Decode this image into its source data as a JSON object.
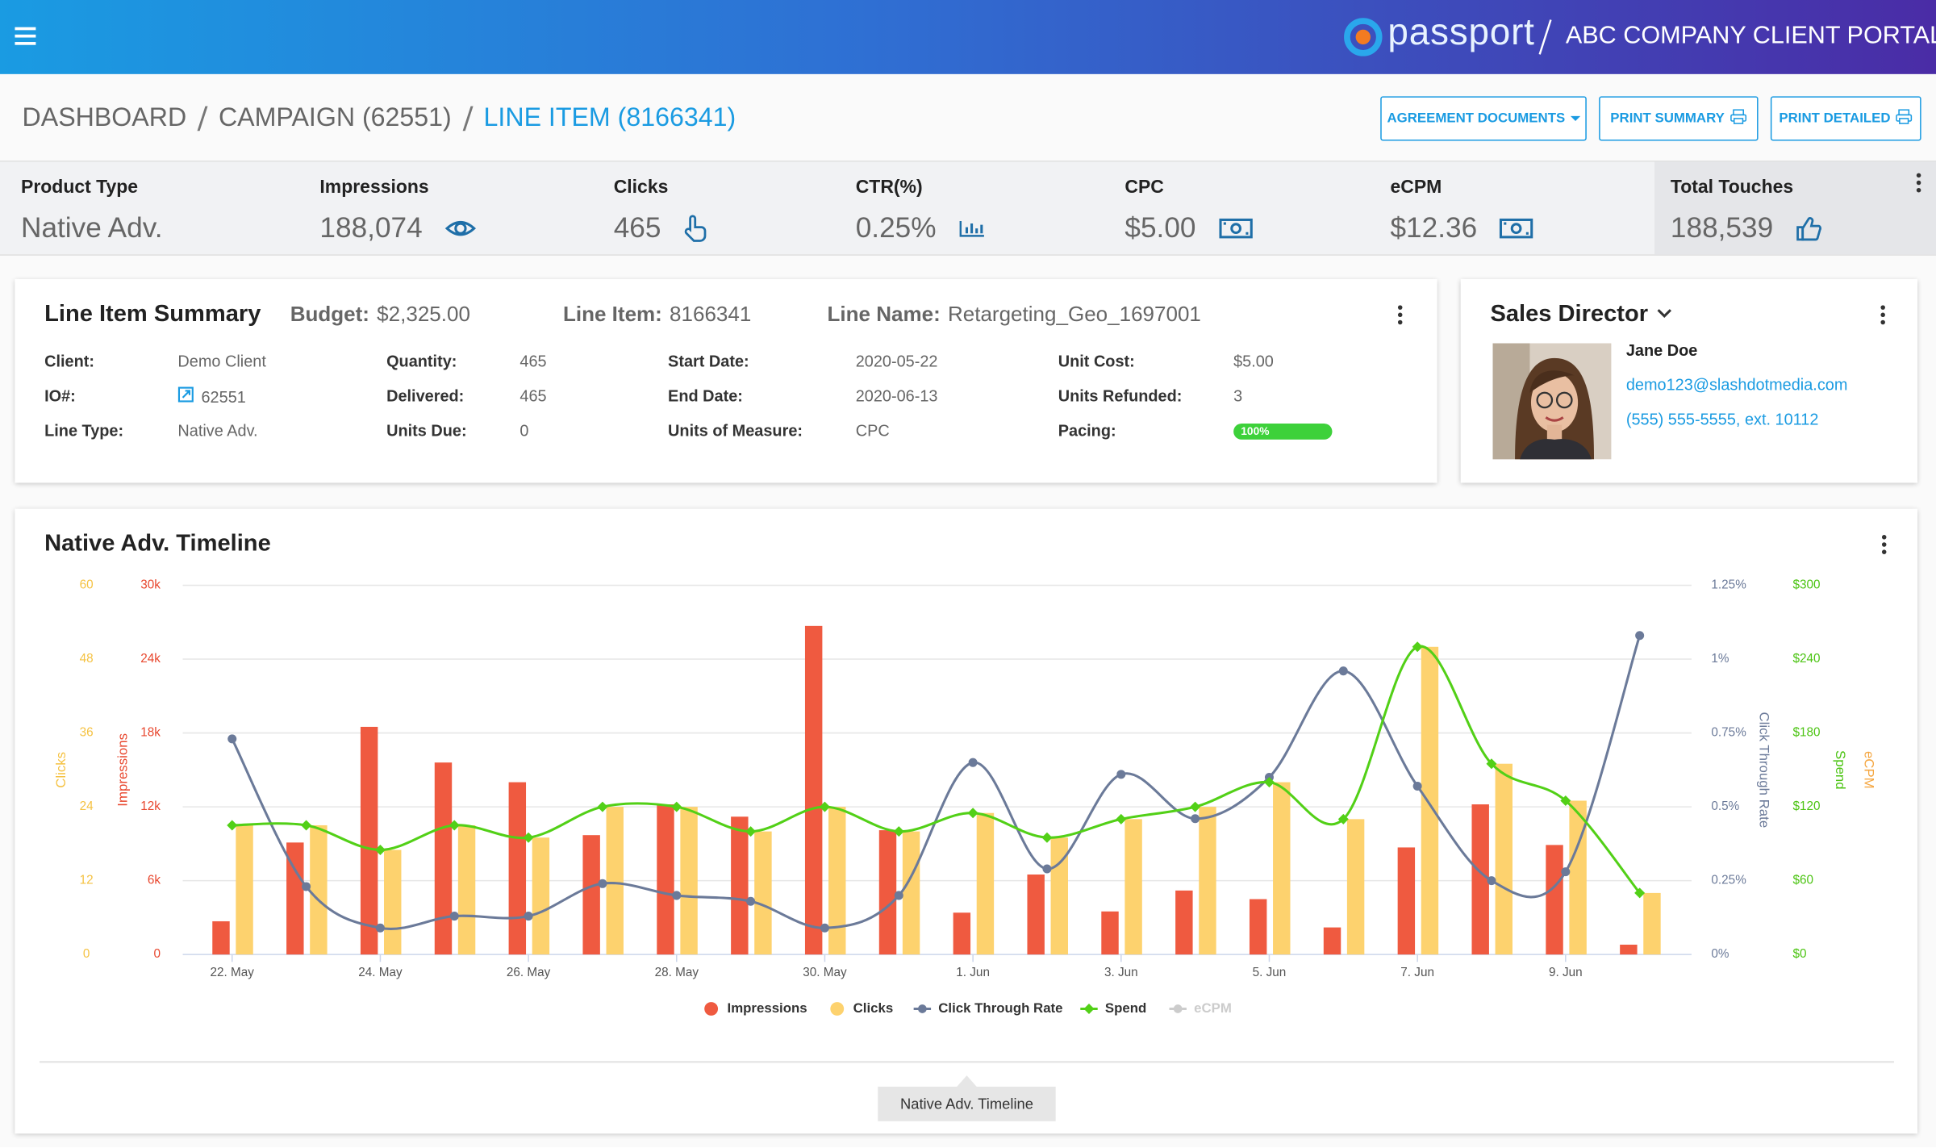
{
  "header": {
    "logo": "passport",
    "portal_title": "ABC COMPANY CLIENT PORTAL"
  },
  "breadcrumbs": [
    "DASHBOARD",
    "CAMPAIGN (62551)",
    "LINE ITEM (8166341)"
  ],
  "buttons": [
    "AGREEMENT DOCUMENTS",
    "PRINT SUMMARY",
    "PRINT DETAILED"
  ],
  "metrics": [
    {
      "label": "Product Type",
      "value": "Native Adv."
    },
    {
      "label": "Impressions",
      "value": "188,074"
    },
    {
      "label": "Clicks",
      "value": "465"
    },
    {
      "label": "CTR(%)",
      "value": "0.25%"
    },
    {
      "label": "CPC",
      "value": "$5.00"
    },
    {
      "label": "eCPM",
      "value": "$12.36"
    },
    {
      "label": "Total Touches",
      "value": "188,539"
    }
  ],
  "summary": {
    "title": "Line Item Summary",
    "header": [
      {
        "label": "Budget:",
        "value": "$2,325.00"
      },
      {
        "label": "Line Item:",
        "value": "8166341"
      },
      {
        "label": "Line Name:",
        "value": "Retargeting_Geo_1697001"
      }
    ],
    "rows": [
      [
        {
          "label": "Client:",
          "value": "Demo Client"
        },
        {
          "label": "Quantity:",
          "value": "465"
        },
        {
          "label": "Start Date:",
          "value": "2020-05-22"
        },
        {
          "label": "Unit Cost:",
          "value": "$5.00"
        }
      ],
      [
        {
          "label": "IO#:",
          "value": "62551"
        },
        {
          "label": "Delivered:",
          "value": "465"
        },
        {
          "label": "End Date:",
          "value": "2020-06-13"
        },
        {
          "label": "Units Refunded:",
          "value": "3"
        }
      ],
      [
        {
          "label": "Line Type:",
          "value": "Native Adv."
        },
        {
          "label": "Units Due:",
          "value": "0"
        },
        {
          "label": "Units of Measure:",
          "value": "CPC"
        }
      ]
    ],
    "pacing": {
      "label": "Pacing:",
      "value": 100,
      "value_label": "100%"
    }
  },
  "sales_director": {
    "title": "Sales Director",
    "name": "Jane Doe",
    "email": "demo123@slashdotmedia.com",
    "phone": "(555) 555-5555, ext. 10112"
  },
  "chart_data": {
    "type": "combo",
    "title": "Native Adv. Timeline",
    "grid": true,
    "categories": [
      "22. May",
      null,
      "24. May",
      null,
      "26. May",
      null,
      "28. May",
      null,
      "30. May",
      null,
      "1. Jun",
      null,
      "3. Jun",
      null,
      "5. Jun",
      null,
      "7. Jun",
      null,
      "9. Jun",
      null
    ],
    "axes": [
      {
        "title": "Clicks",
        "color": "#f5c242",
        "side": "left",
        "lim": [
          0,
          60
        ],
        "ticks": [
          0,
          12,
          24,
          36,
          48,
          60
        ]
      },
      {
        "title": "Impressions",
        "color": "#e8472e",
        "side": "left",
        "lim": [
          0,
          30000
        ],
        "ticks": [
          0,
          {
            "value": 6000,
            "label": "6k"
          },
          {
            "value": 12000,
            "label": "12k"
          },
          {
            "value": 18000,
            "label": "18k"
          },
          {
            "value": 24000,
            "label": "24k"
          },
          {
            "value": 30000,
            "label": "30k"
          }
        ]
      },
      {
        "title": "Click Through Rate",
        "color": "#6b7a99",
        "side": "right",
        "lim": [
          0,
          1.25
        ],
        "ticks": [
          {
            "value": 0,
            "label": "0%"
          },
          {
            "value": 0.25,
            "label": "0.25%"
          },
          {
            "value": 0.5,
            "label": "0.5%"
          },
          {
            "value": 0.75,
            "label": "0.75%"
          },
          {
            "value": 1,
            "label": "1%"
          },
          {
            "value": 1.25,
            "label": "1.25%"
          }
        ]
      },
      {
        "title": "Spend",
        "color": "#4cc413",
        "side": "right",
        "lim": [
          0,
          300
        ],
        "ticks": [
          {
            "value": 0,
            "label": "$0"
          },
          {
            "value": 60,
            "label": "$60"
          },
          {
            "value": 120,
            "label": "$120"
          },
          {
            "value": 180,
            "label": "$180"
          },
          {
            "value": 240,
            "label": "$240"
          },
          {
            "value": 300,
            "label": "$300"
          }
        ]
      },
      {
        "title": "eCPM",
        "color": "#f5a742",
        "side": "right"
      }
    ],
    "series": [
      {
        "name": "Impressions",
        "type": "bar",
        "axis": 1,
        "color": "#ef5a40",
        "visible": true,
        "values": [
          2700,
          9100,
          18500,
          15600,
          14000,
          9700,
          12200,
          11200,
          26700,
          10100,
          3400,
          6500,
          3500,
          5200,
          4500,
          2200,
          8700,
          12200,
          8900,
          800
        ]
      },
      {
        "name": "Clicks",
        "type": "bar",
        "axis": 0,
        "color": "#fdd26e",
        "visible": true,
        "values": [
          21,
          21,
          17,
          21,
          19,
          24,
          24,
          20,
          24,
          20,
          23,
          19,
          22,
          24,
          28,
          22,
          50,
          31,
          25,
          10
        ]
      },
      {
        "name": "Click Through Rate",
        "type": "line",
        "axis": 2,
        "color": "#6b7a99",
        "visible": true,
        "values": [
          0.73,
          0.23,
          0.09,
          0.13,
          0.13,
          0.24,
          0.2,
          0.18,
          0.09,
          0.2,
          0.65,
          0.29,
          0.61,
          0.46,
          0.6,
          0.96,
          0.57,
          0.25,
          0.28,
          1.08
        ]
      },
      {
        "name": "Spend",
        "type": "line",
        "axis": 3,
        "color": "#52d017",
        "visible": true,
        "values": [
          105,
          105,
          85,
          105,
          95,
          120,
          120,
          100,
          120,
          100,
          115,
          95,
          110,
          120,
          140,
          110,
          250,
          155,
          125,
          50
        ]
      },
      {
        "name": "eCPM",
        "type": "line",
        "axis": 4,
        "color": "#cccccc",
        "visible": false,
        "values": [
          null,
          null,
          null,
          null,
          null,
          null,
          null,
          null,
          null,
          null,
          null,
          null,
          null,
          null,
          null,
          null,
          null,
          null,
          null,
          null
        ]
      }
    ]
  }
}
